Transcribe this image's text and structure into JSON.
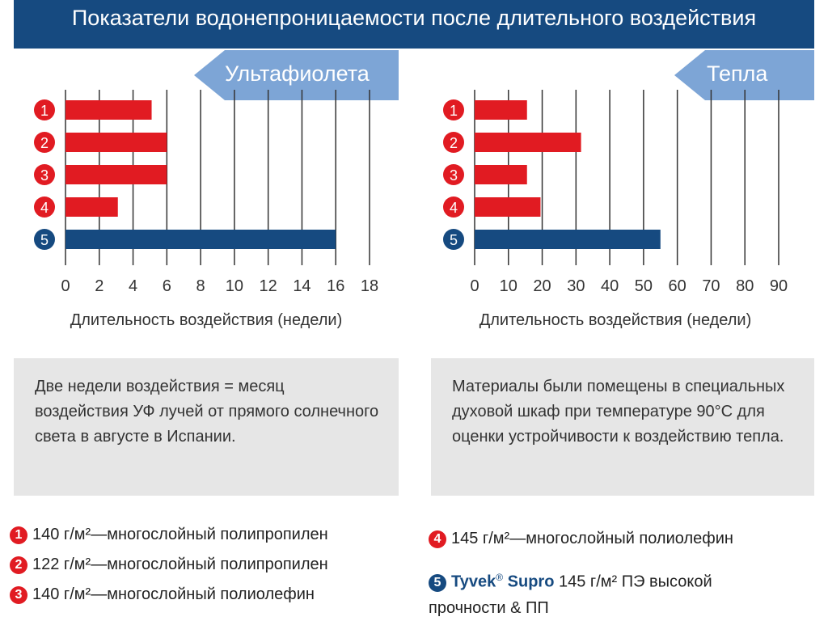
{
  "title": "Показатели водонепроницаемости после длительного воздействия",
  "colors": {
    "red": "#e11b22",
    "blue": "#164a80",
    "tab": "#7da5d6",
    "grid": "#333333"
  },
  "chart_data": [
    {
      "type": "bar",
      "orientation": "horizontal",
      "title": "Ультафиолета",
      "categories": [
        "1",
        "2",
        "3",
        "4",
        "5"
      ],
      "values": [
        5.1,
        6,
        6,
        3.1,
        16
      ],
      "xlabel": "Длительность воздействия (недели)",
      "xlim": [
        0,
        18
      ],
      "xticks": [
        "0",
        "2",
        "4",
        "6",
        "8",
        "10",
        "12",
        "14",
        "16",
        "18"
      ],
      "grid": true
    },
    {
      "type": "bar",
      "orientation": "horizontal",
      "title": "Тепла",
      "categories": [
        "1",
        "2",
        "3",
        "4",
        "5"
      ],
      "values": [
        15.5,
        31.5,
        15.5,
        19.5,
        55
      ],
      "xlabel": "Длительность воздействия (недели)",
      "xlim": [
        0,
        90
      ],
      "xticks": [
        "0",
        "10",
        "20",
        "30",
        "40",
        "50",
        "60",
        "70",
        "80",
        "90"
      ],
      "grid": true
    }
  ],
  "notes": [
    "Две недели воздействия = месяц воздействия УФ лучей от прямого солнечного света в августе в Испании.",
    "Материалы были помещены в специальных духовой шкаф при температуре 90°C для оценки устройчивости к воздействию тепла."
  ],
  "legend": [
    {
      "num": "1",
      "text": "140 г/м²—многослойный полипропилен"
    },
    {
      "num": "2",
      "text": "122 г/м²—многослойный полипропилен"
    },
    {
      "num": "3",
      "text": "140 г/м²—многослойный полиолефин"
    },
    {
      "num": "4",
      "text": "145 г/м²—многослойный полиолефин"
    },
    {
      "num": "5",
      "brand": "Tyvek",
      "reg": "®",
      "product": "Supro",
      "text": "145 г/м² ПЭ высокой прочности & ПП"
    }
  ]
}
